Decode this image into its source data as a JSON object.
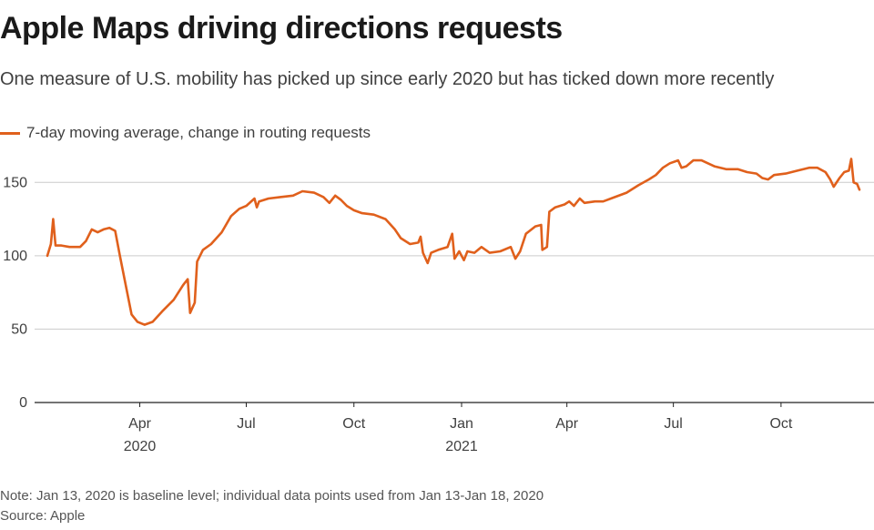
{
  "title": "Apple Maps driving directions requests",
  "subtitle": "One measure of U.S. mobility has picked up since early 2020 but has ticked down more recently",
  "footer": {
    "note": "Note: Jan 13, 2020 is baseline level; individual data points used from Jan 13-Jan 18, 2020",
    "source": "Source: Apple"
  },
  "colors": {
    "line": "#e0601c",
    "grid": "#cccccc",
    "axis": "#222222"
  },
  "chart_data": {
    "type": "line",
    "title": "Apple Maps driving directions requests",
    "xlabel": "",
    "ylabel": "",
    "ylim": [
      0,
      175
    ],
    "yticks": [
      0,
      50,
      100,
      150
    ],
    "x_range": [
      "2020-01-13",
      "2021-12-07"
    ],
    "x_ticks": [
      {
        "date": "2020-04-01",
        "label": "Apr",
        "sublabel": "2020"
      },
      {
        "date": "2020-07-01",
        "label": "Jul",
        "sublabel": ""
      },
      {
        "date": "2020-10-01",
        "label": "Oct",
        "sublabel": ""
      },
      {
        "date": "2021-01-01",
        "label": "Jan",
        "sublabel": "2021"
      },
      {
        "date": "2021-04-01",
        "label": "Apr",
        "sublabel": ""
      },
      {
        "date": "2021-07-01",
        "label": "Jul",
        "sublabel": ""
      },
      {
        "date": "2021-10-01",
        "label": "Oct",
        "sublabel": ""
      }
    ],
    "legend": "7-day moving average, change in routing requests",
    "legend_position": "top-left",
    "grid": true,
    "series": [
      {
        "name": "7-day moving average, change in routing requests",
        "points": [
          [
            "2020-01-13",
            100
          ],
          [
            "2020-01-16",
            108
          ],
          [
            "2020-01-18",
            125
          ],
          [
            "2020-01-20",
            107
          ],
          [
            "2020-01-25",
            107
          ],
          [
            "2020-02-01",
            106
          ],
          [
            "2020-02-10",
            106
          ],
          [
            "2020-02-15",
            110
          ],
          [
            "2020-02-20",
            118
          ],
          [
            "2020-02-25",
            116
          ],
          [
            "2020-03-01",
            118
          ],
          [
            "2020-03-06",
            119
          ],
          [
            "2020-03-11",
            117
          ],
          [
            "2020-03-15",
            100
          ],
          [
            "2020-03-20",
            80
          ],
          [
            "2020-03-25",
            60
          ],
          [
            "2020-03-30",
            55
          ],
          [
            "2020-04-05",
            53
          ],
          [
            "2020-04-12",
            55
          ],
          [
            "2020-04-20",
            62
          ],
          [
            "2020-04-30",
            70
          ],
          [
            "2020-05-08",
            80
          ],
          [
            "2020-05-12",
            84
          ],
          [
            "2020-05-14",
            61
          ],
          [
            "2020-05-18",
            68
          ],
          [
            "2020-05-20",
            96
          ],
          [
            "2020-05-25",
            104
          ],
          [
            "2020-06-01",
            108
          ],
          [
            "2020-06-10",
            116
          ],
          [
            "2020-06-18",
            127
          ],
          [
            "2020-06-25",
            132
          ],
          [
            "2020-07-01",
            134
          ],
          [
            "2020-07-08",
            139
          ],
          [
            "2020-07-10",
            133
          ],
          [
            "2020-07-12",
            137
          ],
          [
            "2020-07-20",
            139
          ],
          [
            "2020-07-30",
            140
          ],
          [
            "2020-08-10",
            141
          ],
          [
            "2020-08-18",
            144
          ],
          [
            "2020-08-28",
            143
          ],
          [
            "2020-09-05",
            140
          ],
          [
            "2020-09-10",
            136
          ],
          [
            "2020-09-15",
            141
          ],
          [
            "2020-09-20",
            138
          ],
          [
            "2020-09-25",
            134
          ],
          [
            "2020-10-01",
            131
          ],
          [
            "2020-10-08",
            129
          ],
          [
            "2020-10-18",
            128
          ],
          [
            "2020-10-28",
            125
          ],
          [
            "2020-11-05",
            118
          ],
          [
            "2020-11-10",
            112
          ],
          [
            "2020-11-18",
            108
          ],
          [
            "2020-11-25",
            109
          ],
          [
            "2020-11-27",
            113
          ],
          [
            "2020-11-29",
            102
          ],
          [
            "2020-12-03",
            95
          ],
          [
            "2020-12-06",
            102
          ],
          [
            "2020-12-12",
            104
          ],
          [
            "2020-12-20",
            106
          ],
          [
            "2020-12-24",
            115
          ],
          [
            "2020-12-26",
            98
          ],
          [
            "2020-12-30",
            103
          ],
          [
            "2021-01-03",
            97
          ],
          [
            "2021-01-06",
            103
          ],
          [
            "2021-01-12",
            102
          ],
          [
            "2021-01-18",
            106
          ],
          [
            "2021-01-25",
            102
          ],
          [
            "2021-02-03",
            103
          ],
          [
            "2021-02-12",
            106
          ],
          [
            "2021-02-16",
            98
          ],
          [
            "2021-02-20",
            103
          ],
          [
            "2021-02-25",
            115
          ],
          [
            "2021-03-05",
            120
          ],
          [
            "2021-03-10",
            121
          ],
          [
            "2021-03-11",
            104
          ],
          [
            "2021-03-15",
            106
          ],
          [
            "2021-03-17",
            130
          ],
          [
            "2021-03-22",
            133
          ],
          [
            "2021-03-30",
            135
          ],
          [
            "2021-04-03",
            137
          ],
          [
            "2021-04-07",
            134
          ],
          [
            "2021-04-12",
            139
          ],
          [
            "2021-04-16",
            136
          ],
          [
            "2021-04-25",
            137
          ],
          [
            "2021-05-02",
            137
          ],
          [
            "2021-05-12",
            140
          ],
          [
            "2021-05-22",
            143
          ],
          [
            "2021-06-01",
            148
          ],
          [
            "2021-06-10",
            152
          ],
          [
            "2021-06-16",
            155
          ],
          [
            "2021-06-22",
            160
          ],
          [
            "2021-06-28",
            163
          ],
          [
            "2021-07-05",
            165
          ],
          [
            "2021-07-08",
            160
          ],
          [
            "2021-07-12",
            161
          ],
          [
            "2021-07-18",
            165
          ],
          [
            "2021-07-25",
            165
          ],
          [
            "2021-08-05",
            161
          ],
          [
            "2021-08-15",
            159
          ],
          [
            "2021-08-25",
            159
          ],
          [
            "2021-09-02",
            157
          ],
          [
            "2021-09-10",
            156
          ],
          [
            "2021-09-15",
            153
          ],
          [
            "2021-09-20",
            152
          ],
          [
            "2021-09-25",
            155
          ],
          [
            "2021-10-05",
            156
          ],
          [
            "2021-10-15",
            158
          ],
          [
            "2021-10-25",
            160
          ],
          [
            "2021-11-01",
            160
          ],
          [
            "2021-11-08",
            157
          ],
          [
            "2021-11-12",
            152
          ],
          [
            "2021-11-15",
            147
          ],
          [
            "2021-11-20",
            153
          ],
          [
            "2021-11-24",
            157
          ],
          [
            "2021-11-28",
            158
          ],
          [
            "2021-11-30",
            166
          ],
          [
            "2021-12-02",
            150
          ],
          [
            "2021-12-05",
            149
          ],
          [
            "2021-12-07",
            145
          ]
        ]
      }
    ]
  }
}
